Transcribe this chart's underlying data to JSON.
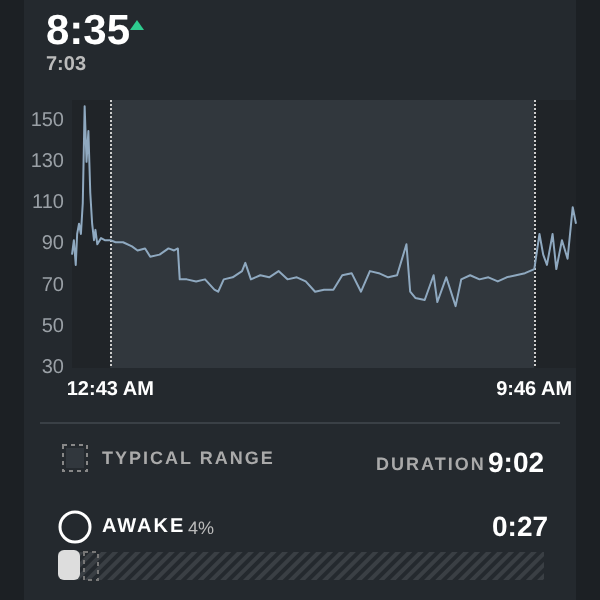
{
  "chart_data": {
    "type": "line",
    "title": "8:35",
    "subtitle": "7:03",
    "x": [
      -0.1,
      -0.06,
      -0.02,
      0.01,
      0.05,
      0.09,
      0.13,
      0.17,
      0.21,
      0.25,
      0.29,
      0.33,
      0.37,
      0.4,
      0.44,
      0.52,
      0.6,
      0.72,
      0.83,
      0.99,
      1.18,
      1.3,
      1.46,
      1.57,
      1.77,
      1.96,
      2.08,
      2.16,
      2.2,
      2.35,
      2.55,
      2.74,
      2.94,
      3.02,
      3.14,
      3.33,
      3.53,
      3.6,
      3.72,
      3.92,
      4.11,
      4.31,
      4.5,
      4.7,
      4.89,
      5.09,
      5.28,
      5.48,
      5.67,
      5.87,
      6.07,
      6.26,
      6.45,
      6.65,
      6.84,
      7.04,
      7.12,
      7.23,
      7.43,
      7.62,
      7.7,
      7.89,
      8.09,
      8.21,
      8.4,
      8.6,
      8.79,
      8.99,
      9.18,
      9.38,
      9.57,
      9.77,
      9.88,
      9.96,
      10.04,
      10.16,
      10.24,
      10.36,
      10.48,
      10.59,
      10.66
    ],
    "series": [
      {
        "color": "#8fa9c0",
        "values": [
          85,
          92,
          80,
          95,
          100,
          95,
          110,
          157,
          130,
          145,
          115,
          100,
          92,
          97,
          90,
          93,
          92,
          92,
          91,
          91,
          89,
          87,
          88,
          84,
          85,
          88,
          87,
          88,
          73,
          73,
          72,
          73,
          68,
          67,
          73,
          74,
          77,
          81,
          73,
          75,
          74,
          77,
          73,
          74,
          72,
          67,
          68,
          68,
          75,
          76,
          67,
          77,
          76,
          74,
          75,
          90,
          67,
          64,
          63,
          75,
          62,
          74,
          60,
          73,
          75,
          73,
          74,
          72,
          74,
          75,
          76,
          78,
          95,
          85,
          80,
          95,
          78,
          92,
          83,
          108,
          100
        ]
      }
    ],
    "xlim": [
      -0.1,
      10.66
    ],
    "ylim": [
      30,
      160
    ],
    "yticks": [
      30,
      50,
      70,
      90,
      110,
      130,
      150
    ],
    "xticks": [
      {
        "value": 0.7167,
        "label": "12:43 AM"
      },
      {
        "value": 9.7667,
        "label": "9:46 AM"
      }
    ],
    "grid": "x",
    "marker": "none",
    "line_style": "solid",
    "bands": [
      {
        "axis": "x",
        "from": 0.7167,
        "to": 9.7667,
        "label": "TYPICAL RANGE",
        "color": "#31373d"
      }
    ],
    "annotations": [
      "DURATION",
      "9:02",
      "AWAKE",
      "4%",
      "0:27"
    ]
  }
}
